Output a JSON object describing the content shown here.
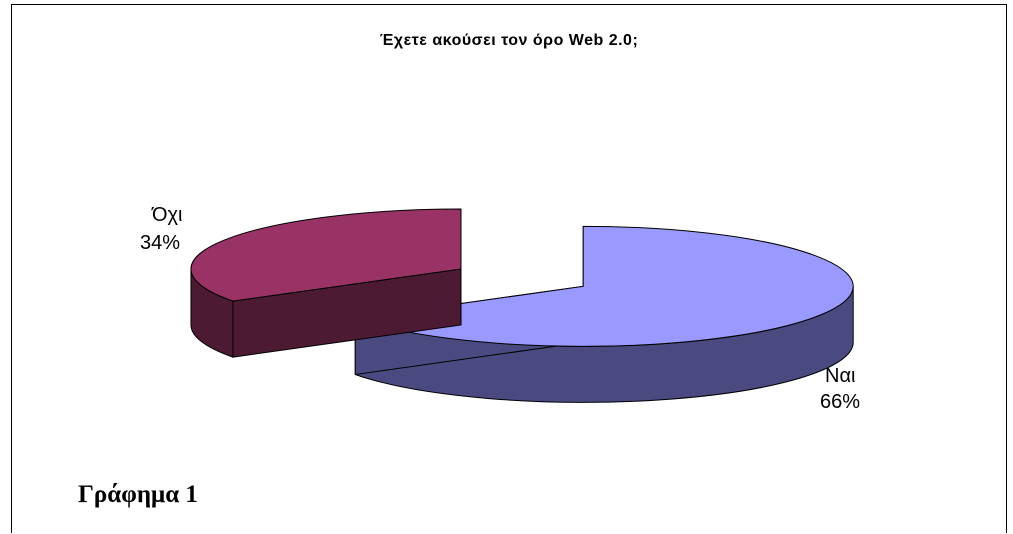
{
  "chart_data": {
    "type": "pie",
    "title": "Έχετε ακούσει τον όρο Web 2.0;",
    "three_d": true,
    "exploded": true,
    "slices": [
      {
        "label": "Ναι",
        "value": 66,
        "value_label": "66%",
        "color": "#9999ff",
        "side_color": "#4a4a80"
      },
      {
        "label": "Όχι",
        "value": 34,
        "value_label": "34%",
        "color": "#993366",
        "side_color": "#4d1a33"
      }
    ]
  },
  "caption": "Γράφημα 1"
}
